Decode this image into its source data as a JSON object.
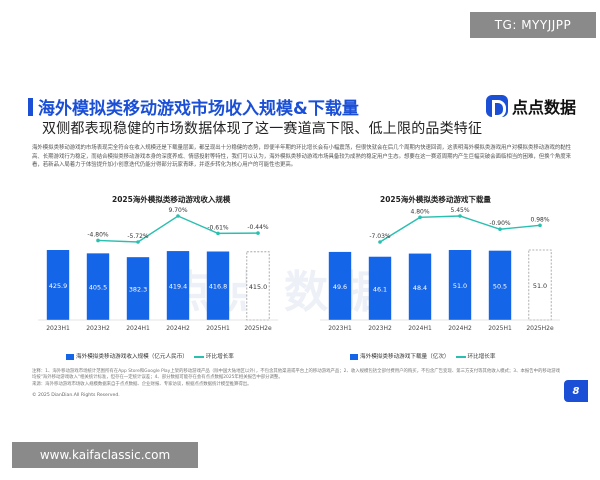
{
  "overlays": {
    "top_badge": "TG: MYYJJPP",
    "bottom_badge": "www.kaifaclassic.com"
  },
  "slide": {
    "title": "海外模拟类移动游戏市场收入规模&下载量",
    "subtitle": "双侧都表现稳健的市场数据体现了这一赛道高下限、低上限的品类特征",
    "logo_text": "点点数据",
    "paragraph": "海外模拟类移动游戏的市场表现完全符合在收入规模还是下载量层面，都呈现出十分稳健的态势，即便半年期的环比增长会有小幅震荡，但很快就会在后几个周期内快速回调，这表明海外模拟类游戏用户对模拟类移动游戏的黏性高、长期游戏行为稳定，而结合模拟类移动游戏本身的深度养成、情感投射等特性，我们可以认为，海外模拟类移动游戏市场具备较为成熟的稳定用户生态。想要在这一赛道周期内产生巨幅突破会面临相当的困难，但换个角度来看，若新品入局着力于体验提升加小创意迭代仍能分得部分玩家青睐，并逐步转化为核心用户的可能性也更高。",
    "watermark": "点点数据",
    "notes": "注释：1、海外移动游戏市场统计范围所有在App Store和Google Play上架的移动游戏产品（除中国大陆地区以外），不包含其他渠道或平台上的移动游戏产品；2、收入规模包括全部付费用户的购买，不包含广告变现、第三方支付等其他收入模式；3、本报告中的移动游戏均按\"海外移动游戏收入\"相关统计标准，但存在一定统计误差；4、部分数据可能存在会有点点数据2025年相关报告中部分调整。",
    "notes_source": "来源：海外移动游戏市场收入规模数据来自于点点数据、企业财报、专家访谈，根据点点数据统计模型推算得出。",
    "copyright": "© 2025 DianDian.All Rights Reserved.",
    "page_number": "8"
  },
  "chart_data": [
    {
      "type": "bar",
      "title": "2025海外模拟类移动游戏收入规模",
      "categories": [
        "2023H1",
        "2023H2",
        "2024H1",
        "2024H2",
        "2025H1",
        "2025H2e"
      ],
      "series": [
        {
          "name": "海外模拟类移动游戏收入规模（亿元人民币）",
          "type": "bar",
          "values": [
            425.9,
            405.5,
            382.3,
            419.4,
            416.8,
            415.0
          ],
          "labels": [
            "425.9",
            "405.5",
            "382.3",
            "419.4",
            "416.8",
            "415.0"
          ],
          "estimated_last": true
        },
        {
          "name": "环比增长率",
          "type": "line",
          "values": [
            null,
            -4.8,
            -5.72,
            9.7,
            -0.61,
            -0.44
          ],
          "labels": [
            "",
            "-4.80%",
            "-5.72%",
            "9.70%",
            "-0.61%",
            "-0.44%"
          ]
        }
      ],
      "legend": "bottom",
      "grid": false
    },
    {
      "type": "bar",
      "title": "2025海外模拟类移动游戏下载量",
      "categories": [
        "2023H1",
        "2023H2",
        "2024H1",
        "2024H2",
        "2025H1",
        "2025H2e"
      ],
      "series": [
        {
          "name": "海外模拟类移动游戏下载量（亿次）",
          "type": "bar",
          "values": [
            49.6,
            46.1,
            48.4,
            51.0,
            50.5,
            51.0
          ],
          "labels": [
            "49.6",
            "46.1",
            "48.4",
            "51.0",
            "50.5",
            "51.0"
          ],
          "estimated_last": true
        },
        {
          "name": "环比增长率",
          "type": "line",
          "values": [
            null,
            -7.03,
            4.8,
            5.45,
            -0.9,
            0.98
          ],
          "labels": [
            "",
            "-7.03%",
            "4.80%",
            "5.45%",
            "-0.90%",
            "0.98%"
          ]
        }
      ],
      "legend": "bottom",
      "grid": false
    }
  ],
  "colors": {
    "accent": "#1a4fd6",
    "bar": "#1565e8",
    "line": "#2bbfb0",
    "estimate_border": "#999999"
  }
}
